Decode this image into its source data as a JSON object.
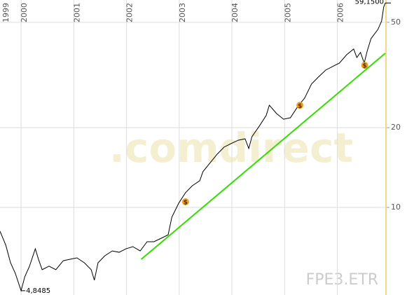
{
  "chart_data": {
    "type": "line",
    "symbol": "FPE3.ETR",
    "watermark": ".comdirect",
    "log": true,
    "grid": true,
    "xlim": [
      1999.6,
      2006.91
    ],
    "xticks": [
      1999,
      2000,
      2001,
      2002,
      2003,
      2004,
      2005,
      2006
    ],
    "ylim": [
      4.67,
      60.7
    ],
    "yticks": [
      10,
      20,
      50
    ],
    "series": [
      {
        "color": "#000000",
        "x": [
          1999.6,
          1999.71,
          1999.8,
          1999.89,
          2000.0,
          2000.07,
          2000.16,
          2000.27,
          2000.33,
          2000.4,
          2000.53,
          2000.66,
          2000.8,
          2000.93,
          2001.06,
          2001.2,
          2001.33,
          2001.39,
          2001.46,
          2001.59,
          2001.73,
          2001.86,
          2001.99,
          2002.12,
          2002.26,
          2002.39,
          2002.52,
          2002.66,
          2002.79,
          2002.86,
          2002.99,
          2003.12,
          2003.25,
          2003.39,
          2003.45,
          2003.59,
          2003.72,
          2003.85,
          2003.98,
          2004.12,
          2004.25,
          2004.32,
          2004.38,
          2004.52,
          2004.65,
          2004.71,
          2004.85,
          2004.98,
          2005.11,
          2005.25,
          2005.38,
          2005.51,
          2005.64,
          2005.78,
          2005.91,
          2006.04,
          2006.18,
          2006.31,
          2006.37,
          2006.44,
          2006.51,
          2006.57,
          2006.64,
          2006.77,
          2006.84,
          2006.88,
          2006.91
        ],
        "values": [
          8.13,
          7.2,
          6.18,
          5.64,
          4.8485,
          5.47,
          6.0,
          6.98,
          6.37,
          5.82,
          6.0,
          5.82,
          6.29,
          6.37,
          6.45,
          6.18,
          5.82,
          5.31,
          6.18,
          6.57,
          6.85,
          6.77,
          6.98,
          7.11,
          6.85,
          7.42,
          7.42,
          7.65,
          7.88,
          9.18,
          10.37,
          11.37,
          12.08,
          12.61,
          13.64,
          14.76,
          15.88,
          16.89,
          17.4,
          17.94,
          18.16,
          16.69,
          18.5,
          20.28,
          22.23,
          24.32,
          22.59,
          21.53,
          21.81,
          24.05,
          25.87,
          29.23,
          31.05,
          33.01,
          34.04,
          35.08,
          37.76,
          39.63,
          36.81,
          38.47,
          35.08,
          39.14,
          43.41,
          46.99,
          50.53,
          57.1,
          59.15
        ]
      }
    ],
    "trendline": {
      "color": "#33dd00",
      "x": [
        2002.28,
        2006.91
      ],
      "values": [
        6.37,
        38.2
      ]
    },
    "markers": {
      "label": "$",
      "color": "#f0a020",
      "x": [
        2003.12,
        2005.29,
        2006.52
      ],
      "values": [
        10.5,
        24.3,
        34.4
      ]
    },
    "high": {
      "x": 2006.91,
      "value": 59.15,
      "label": "59,1500"
    },
    "low": {
      "x": 2000.0,
      "value": 4.8485,
      "label": "4,8485"
    }
  }
}
